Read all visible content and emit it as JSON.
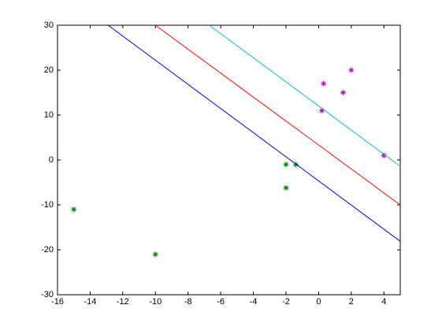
{
  "chart_data": {
    "type": "scatter",
    "xlim": [
      -16,
      5
    ],
    "ylim": [
      -30,
      30
    ],
    "xticks": [
      -16,
      -14,
      -12,
      -10,
      -8,
      -6,
      -4,
      -2,
      0,
      2,
      4
    ],
    "yticks": [
      -30,
      -20,
      -10,
      0,
      10,
      20,
      30
    ],
    "grid": false,
    "series": [
      {
        "type": "scatter",
        "color": "#008000",
        "x": [
          -15,
          -10,
          -2,
          -1.4,
          -2
        ],
        "y": [
          -11,
          -21,
          -1,
          -1,
          -6.2
        ]
      },
      {
        "type": "scatter",
        "color": "#bf00bf",
        "x": [
          0.3,
          2,
          1.5,
          0.2,
          4
        ],
        "y": [
          17,
          20,
          15,
          11,
          1
        ]
      },
      {
        "type": "line",
        "color": "#0000ff",
        "x": [
          -12.9,
          5
        ],
        "y": [
          30,
          -18.1
        ]
      },
      {
        "type": "line",
        "color": "#ff0000",
        "x": [
          -10,
          5
        ],
        "y": [
          30,
          -10
        ]
      },
      {
        "type": "line",
        "color": "#00bfbf",
        "x": [
          -6.7,
          5
        ],
        "y": [
          30,
          -1.4
        ]
      }
    ]
  }
}
